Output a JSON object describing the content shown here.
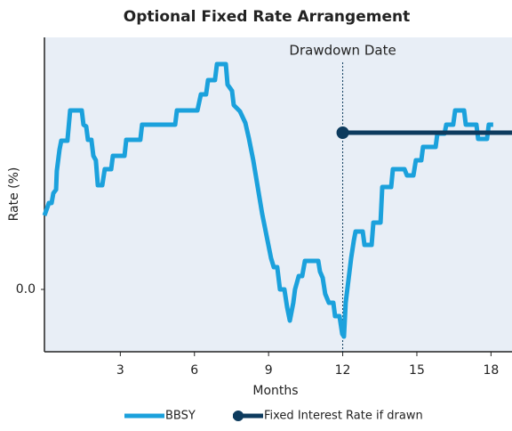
{
  "chart_data": {
    "type": "line",
    "title": "Optional Fixed Rate Arrangement",
    "x_label": "Months",
    "y_label": "Rate (%)",
    "xlim": [
      -0.07,
      18.85
    ],
    "ylim": [
      -1.4,
      5.66
    ],
    "xticks": [
      3,
      6,
      9,
      12,
      15,
      18
    ],
    "yticks": [
      {
        "value": 0,
        "label": "0.0"
      }
    ],
    "annotations": [
      {
        "text": "Drawdown Date",
        "x": 12
      }
    ],
    "legend": "bottom",
    "series": [
      {
        "name": "BBSY",
        "color": "#1ba1dc",
        "x": [
          -0.07,
          0.11,
          0.22,
          0.29,
          0.4,
          0.43,
          0.54,
          0.61,
          0.86,
          0.97,
          1.44,
          1.51,
          1.62,
          1.69,
          1.83,
          1.91,
          2.01,
          2.09,
          2.27,
          2.37,
          2.63,
          2.7,
          3.17,
          3.24,
          3.81,
          3.88,
          5.22,
          5.29,
          6.12,
          6.26,
          6.47,
          6.55,
          6.83,
          6.91,
          7.27,
          7.34,
          7.52,
          7.59,
          7.84,
          8.06,
          8.2,
          8.38,
          8.56,
          8.74,
          8.92,
          9.1,
          9.21,
          9.35,
          9.46,
          9.64,
          9.75,
          9.86,
          10.0,
          10.07,
          10.22,
          10.36,
          10.47,
          11.01,
          11.08,
          11.19,
          11.29,
          11.44,
          11.62,
          11.69,
          11.87,
          11.98,
          12.05,
          12.12,
          12.23,
          12.34,
          12.45,
          12.52,
          12.81,
          12.88,
          13.17,
          13.24,
          13.53,
          13.6,
          13.96,
          14.03,
          14.5,
          14.6,
          14.86,
          14.96,
          15.18,
          15.25,
          15.76,
          15.83,
          16.12,
          16.19,
          16.47,
          16.55,
          16.91,
          16.98,
          17.41,
          17.48,
          17.84,
          17.91,
          18.09
        ],
        "values": [
          1.66,
          1.94,
          1.94,
          2.16,
          2.24,
          2.66,
          3.14,
          3.34,
          3.34,
          4.02,
          4.02,
          3.7,
          3.66,
          3.36,
          3.36,
          3.0,
          2.9,
          2.34,
          2.34,
          2.7,
          2.7,
          3.0,
          3.0,
          3.36,
          3.36,
          3.7,
          3.7,
          4.02,
          4.02,
          4.38,
          4.38,
          4.7,
          4.7,
          5.06,
          5.06,
          4.6,
          4.46,
          4.14,
          4.0,
          3.74,
          3.4,
          2.9,
          2.3,
          1.7,
          1.2,
          0.7,
          0.5,
          0.5,
          0,
          0,
          -0.4,
          -0.7,
          -0.3,
          0,
          0.3,
          0.3,
          0.64,
          0.64,
          0.4,
          0.26,
          -0.1,
          -0.3,
          -0.3,
          -0.6,
          -0.6,
          -1.0,
          -1.06,
          -0.3,
          0.2,
          0.7,
          1.1,
          1.3,
          1.3,
          1.0,
          1.0,
          1.5,
          1.5,
          2.3,
          2.3,
          2.7,
          2.7,
          2.56,
          2.56,
          2.9,
          2.9,
          3.2,
          3.2,
          3.5,
          3.5,
          3.7,
          3.7,
          4.02,
          4.02,
          3.7,
          3.7,
          3.38,
          3.38,
          3.7,
          3.7
        ]
      },
      {
        "name": "Fixed Interest Rate if drawn",
        "color": "#0d3b5e",
        "marker": "circle",
        "x": [
          12,
          18.85
        ],
        "values": [
          3.52,
          3.52
        ]
      }
    ]
  }
}
